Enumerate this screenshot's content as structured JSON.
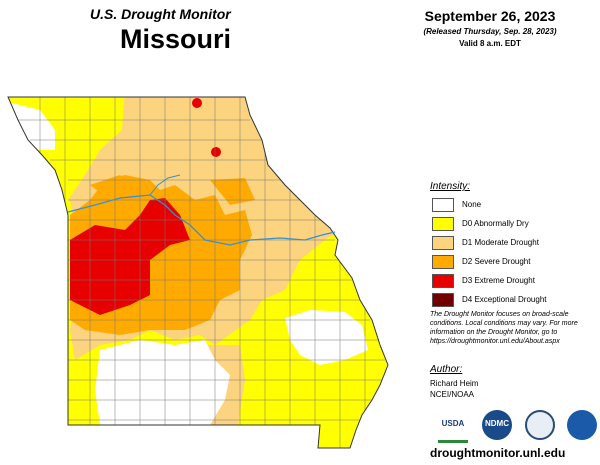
{
  "header": {
    "title": "U.S. Drought Monitor",
    "state": "Missouri"
  },
  "date": {
    "date": "September 26, 2023",
    "released": "(Released Thursday, Sep. 28, 2023)",
    "valid": "Valid 8 a.m. EDT"
  },
  "legend": {
    "title": "Intensity:",
    "items": [
      {
        "label": "None",
        "color": "#ffffff"
      },
      {
        "label": "D0 Abnormally Dry",
        "color": "#ffff00"
      },
      {
        "label": "D1 Moderate Drought",
        "color": "#fcd37f"
      },
      {
        "label": "D2 Severe Drought",
        "color": "#ffaa00"
      },
      {
        "label": "D3 Extreme Drought",
        "color": "#e60000"
      },
      {
        "label": "D4 Exceptional Drought",
        "color": "#730000"
      }
    ]
  },
  "note": "The Drought Monitor focuses on broad-scale conditions. Local conditions may vary. For more information on the Drought Monitor, go to https://droughtmonitor.unl.edu/About.aspx",
  "author": {
    "title": "Author:",
    "name": "Richard Heim",
    "org": "NCEI/NOAA"
  },
  "logos": [
    "USDA",
    "NDMC"
  ],
  "url": "droughtmonitor.unl.edu"
}
